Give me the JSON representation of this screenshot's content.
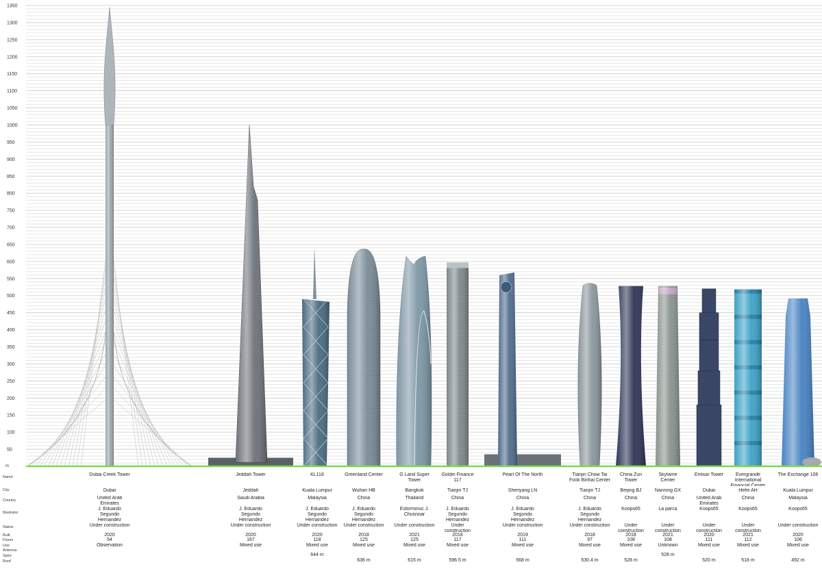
{
  "chart_data": {
    "type": "bar",
    "unit_label": "m",
    "ylim": [
      0,
      1350
    ],
    "ytick_step": 50,
    "minor_step": 10,
    "grid": true,
    "row_labels": {
      "name": "Name",
      "city": "City",
      "country": "Country",
      "illustrator": "Illustrator",
      "status": "Status",
      "built": "Built",
      "floors": "Floors",
      "use": "Use",
      "antenna": "Antenna",
      "spire": "Spire",
      "roof": "Roof"
    },
    "buildings": [
      {
        "name": "Dubai Creek Tower",
        "city": "Dubai",
        "country": "United Arab Emirates",
        "illustrator": "J. Eduardo Segundo Hernandez",
        "status": "Under construction",
        "built": "2020",
        "floors": "54",
        "use": "Observation",
        "spire": "",
        "roof": "",
        "height": 1345,
        "style": "creek",
        "color": "#9ea4ab"
      },
      {
        "name": "Jeddah Tower",
        "city": "Jeddah",
        "country": "Saudi Arabia",
        "illustrator": "J. Eduardo Segundo Hernandez",
        "status": "Under construction",
        "built": "2020",
        "floors": "167",
        "use": "Mixed use",
        "spire": "",
        "roof": "",
        "height": 1000,
        "style": "jeddah",
        "color": "#6f747b"
      },
      {
        "name": "KL118",
        "city": "Kuala Lumpur",
        "country": "Malaysia",
        "illustrator": "J. Eduardo Segundo Hernandez",
        "status": "Under construction",
        "built": "2020",
        "floors": "118",
        "use": "Mixed use",
        "spire": "644 m",
        "roof": "",
        "height": 644,
        "roof_height": 490,
        "style": "kl118",
        "color": "#4a6b80"
      },
      {
        "name": "Greenland Center",
        "city": "Wuhan HB",
        "country": "China",
        "illustrator": "J. Eduardo Segundo Hernandez",
        "status": "Under construction",
        "built": "2018",
        "floors": "125",
        "use": "Mixed use",
        "spire": "",
        "roof": "636 m",
        "height": 636,
        "style": "bullet",
        "color": "#7d8f9c"
      },
      {
        "name": "G Land Super Tower",
        "city": "Bangkok",
        "country": "Thailand",
        "illustrator": "Esforminuc J. Chusnoar",
        "status": "Under construction",
        "built": "2021",
        "floors": "125",
        "use": "Mixed use",
        "spire": "",
        "roof": "615 m",
        "height": 615,
        "style": "twin",
        "color": "#7e97a6"
      },
      {
        "name": "Goldin Finance 117",
        "city": "Tianjin TJ",
        "country": "China",
        "illustrator": "J. Eduardo Segundo Hernandez",
        "status": "Under construction",
        "built": "2018",
        "floors": "117",
        "use": "Mixed use",
        "spire": "",
        "roof": "596.5 m",
        "height": 597,
        "style": "block",
        "color": "#7f8c8e"
      },
      {
        "name": "Pearl Of The North",
        "city": "Shenyang LN",
        "country": "China",
        "illustrator": "J. Eduardo Segundo Hernandez",
        "status": "Under construction",
        "built": "2019",
        "floors": "111",
        "use": "Mixed use",
        "spire": "",
        "roof": "568 m",
        "height": 568,
        "style": "pearl",
        "color": "#4f6b8a"
      },
      {
        "name": "Tianjin Chow Tai Fook Binhai Center",
        "city": "Tianjin TJ",
        "country": "China",
        "illustrator": "J. Eduardo Segundo Hernandez",
        "status": "Under construction",
        "built": "2018",
        "floors": "97",
        "use": "Mixed use",
        "spire": "",
        "roof": "530.4 m",
        "height": 530,
        "style": "ctf",
        "color": "#8a969c"
      },
      {
        "name": "China Zun Tower",
        "city": "Beijing BJ",
        "country": "China",
        "illustrator": "Koops65",
        "status": "Under construction",
        "built": "2018",
        "floors": "108",
        "use": "Mixed use",
        "spire": "",
        "roof": "528 m",
        "height": 528,
        "style": "zun",
        "color": "#2f3658"
      },
      {
        "name": "Skyfame Center",
        "city": "Nanning GX",
        "country": "China",
        "illustrator": "La parca",
        "status": "Under construction",
        "built": "2021",
        "floors": "108",
        "use": "Unknown",
        "spire": "528 m",
        "roof": "",
        "height": 528,
        "style": "skyfame",
        "color": "#8c9590"
      },
      {
        "name": "Entisar Tower",
        "city": "Dubai",
        "country": "United Arab Emirates",
        "illustrator": "Koops65",
        "status": "Under construction",
        "built": "2020",
        "floors": "111",
        "use": "Mixed use",
        "spire": "",
        "roof": "520 m",
        "height": 520,
        "style": "entisar",
        "color": "#3b4868"
      },
      {
        "name": "Evergrande International Financial Center",
        "city": "Hefei AH",
        "country": "China",
        "illustrator": "Koops65",
        "status": "Under construction",
        "built": "2021",
        "floors": "112",
        "use": "Mixed use",
        "spire": "",
        "roof": "518 m",
        "height": 518,
        "style": "evergrande",
        "color": "#3fa3c7"
      },
      {
        "name": "The Exchange 106",
        "city": "Kuala Lumpur",
        "country": "Malaysia",
        "illustrator": "Koops65",
        "status": "Under construction",
        "built": "2020",
        "floors": "106",
        "use": "Mixed use",
        "spire": "",
        "roof": "492 m",
        "height": 492,
        "style": "exchange",
        "color": "#4a86c8"
      }
    ]
  }
}
